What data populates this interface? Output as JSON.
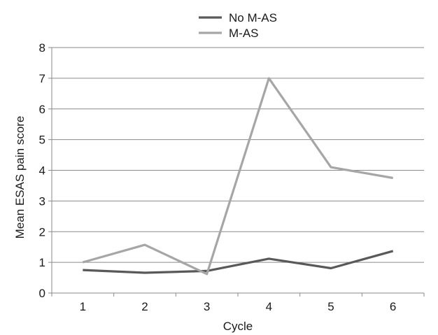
{
  "chart_data": {
    "type": "line",
    "title": "",
    "xlabel": "Cycle",
    "ylabel": "Mean ESAS pain score",
    "categories": [
      "1",
      "2",
      "3",
      "4",
      "5",
      "6"
    ],
    "ylim": [
      0,
      8
    ],
    "yticks": [
      "0",
      "1",
      "2",
      "3",
      "4",
      "5",
      "6",
      "7",
      "8"
    ],
    "grid": true,
    "legend_position": "top",
    "series": [
      {
        "name": "No M-AS",
        "color": "#595959",
        "values": [
          0.75,
          0.66,
          0.72,
          1.12,
          0.81,
          1.37
        ]
      },
      {
        "name": "M-AS",
        "color": "#a6a6a6",
        "values": [
          1.0,
          1.57,
          0.62,
          7.0,
          4.1,
          3.75
        ]
      }
    ]
  }
}
